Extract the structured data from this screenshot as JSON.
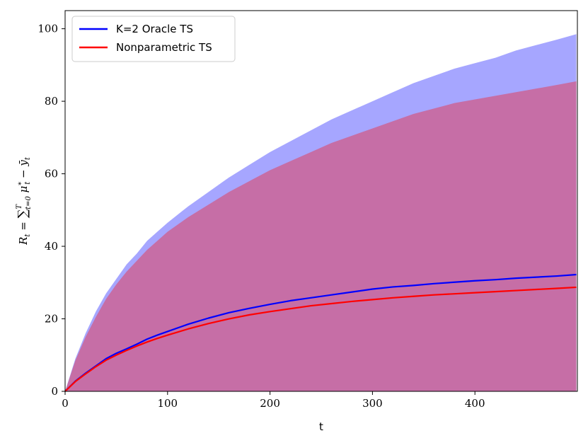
{
  "chart_data": {
    "type": "line",
    "title": "",
    "xlabel": "t",
    "ylabel": "R_t = Σ_{t=0}^{T} μ*_t − ȳ_t",
    "xlim": [
      0,
      500
    ],
    "ylim": [
      0,
      105
    ],
    "xticks": [
      0,
      100,
      200,
      300,
      400
    ],
    "yticks": [
      0,
      20,
      40,
      60,
      80,
      100
    ],
    "grid": false,
    "legend_position": "top-left",
    "x": [
      0,
      10,
      20,
      30,
      40,
      50,
      60,
      70,
      80,
      90,
      100,
      120,
      140,
      160,
      180,
      200,
      220,
      240,
      260,
      280,
      300,
      320,
      340,
      360,
      380,
      400,
      420,
      440,
      460,
      480,
      499
    ],
    "series": [
      {
        "name": "K=2 Oracle TS",
        "color": "#0000ff",
        "band_color": "#a6a6ff",
        "mean": [
          0,
          2.8,
          5.0,
          7.0,
          9.0,
          10.5,
          11.7,
          13.0,
          14.4,
          15.5,
          16.5,
          18.5,
          20.2,
          21.7,
          22.9,
          24.0,
          25.0,
          25.8,
          26.6,
          27.4,
          28.2,
          28.8,
          29.2,
          29.7,
          30.1,
          30.5,
          30.8,
          31.2,
          31.5,
          31.8,
          32.2
        ],
        "upper": [
          0,
          9,
          16,
          22,
          27,
          31,
          35,
          38,
          41.5,
          44,
          46.5,
          51,
          55,
          59,
          62.5,
          66,
          69,
          72,
          75,
          77.5,
          80,
          82.5,
          85,
          87,
          89,
          90.5,
          92,
          94,
          95.5,
          97,
          98.5
        ],
        "lower": [
          0,
          0,
          0,
          0,
          0,
          0,
          0,
          0,
          0,
          0,
          0,
          0,
          0,
          0,
          0,
          0,
          0,
          0,
          0,
          0,
          0,
          0,
          0,
          0,
          0,
          0,
          0,
          0,
          0,
          0,
          0
        ]
      },
      {
        "name": "Nonparametric TS",
        "color": "#ff0000",
        "band_color": "#c66ea6",
        "mean": [
          0,
          2.7,
          4.8,
          6.8,
          8.6,
          10.0,
          11.3,
          12.5,
          13.6,
          14.6,
          15.5,
          17.2,
          18.7,
          20.0,
          21.1,
          22.0,
          22.8,
          23.6,
          24.2,
          24.8,
          25.3,
          25.8,
          26.2,
          26.6,
          26.9,
          27.2,
          27.5,
          27.8,
          28.1,
          28.4,
          28.7
        ],
        "upper": [
          0,
          8.5,
          15,
          20.5,
          25.5,
          29.5,
          33,
          36,
          39,
          41.5,
          44,
          48,
          51.5,
          55,
          58,
          61,
          63.5,
          66,
          68.5,
          70.5,
          72.5,
          74.5,
          76.5,
          78,
          79.5,
          80.5,
          81.5,
          82.5,
          83.5,
          84.5,
          85.5
        ],
        "lower": [
          0,
          0,
          0,
          0,
          0,
          0,
          0,
          0,
          0,
          0,
          0,
          0,
          0,
          0,
          0,
          0,
          0,
          0,
          0,
          0,
          0,
          0,
          0,
          0,
          0,
          0,
          0,
          0,
          0,
          0,
          0
        ]
      }
    ]
  }
}
